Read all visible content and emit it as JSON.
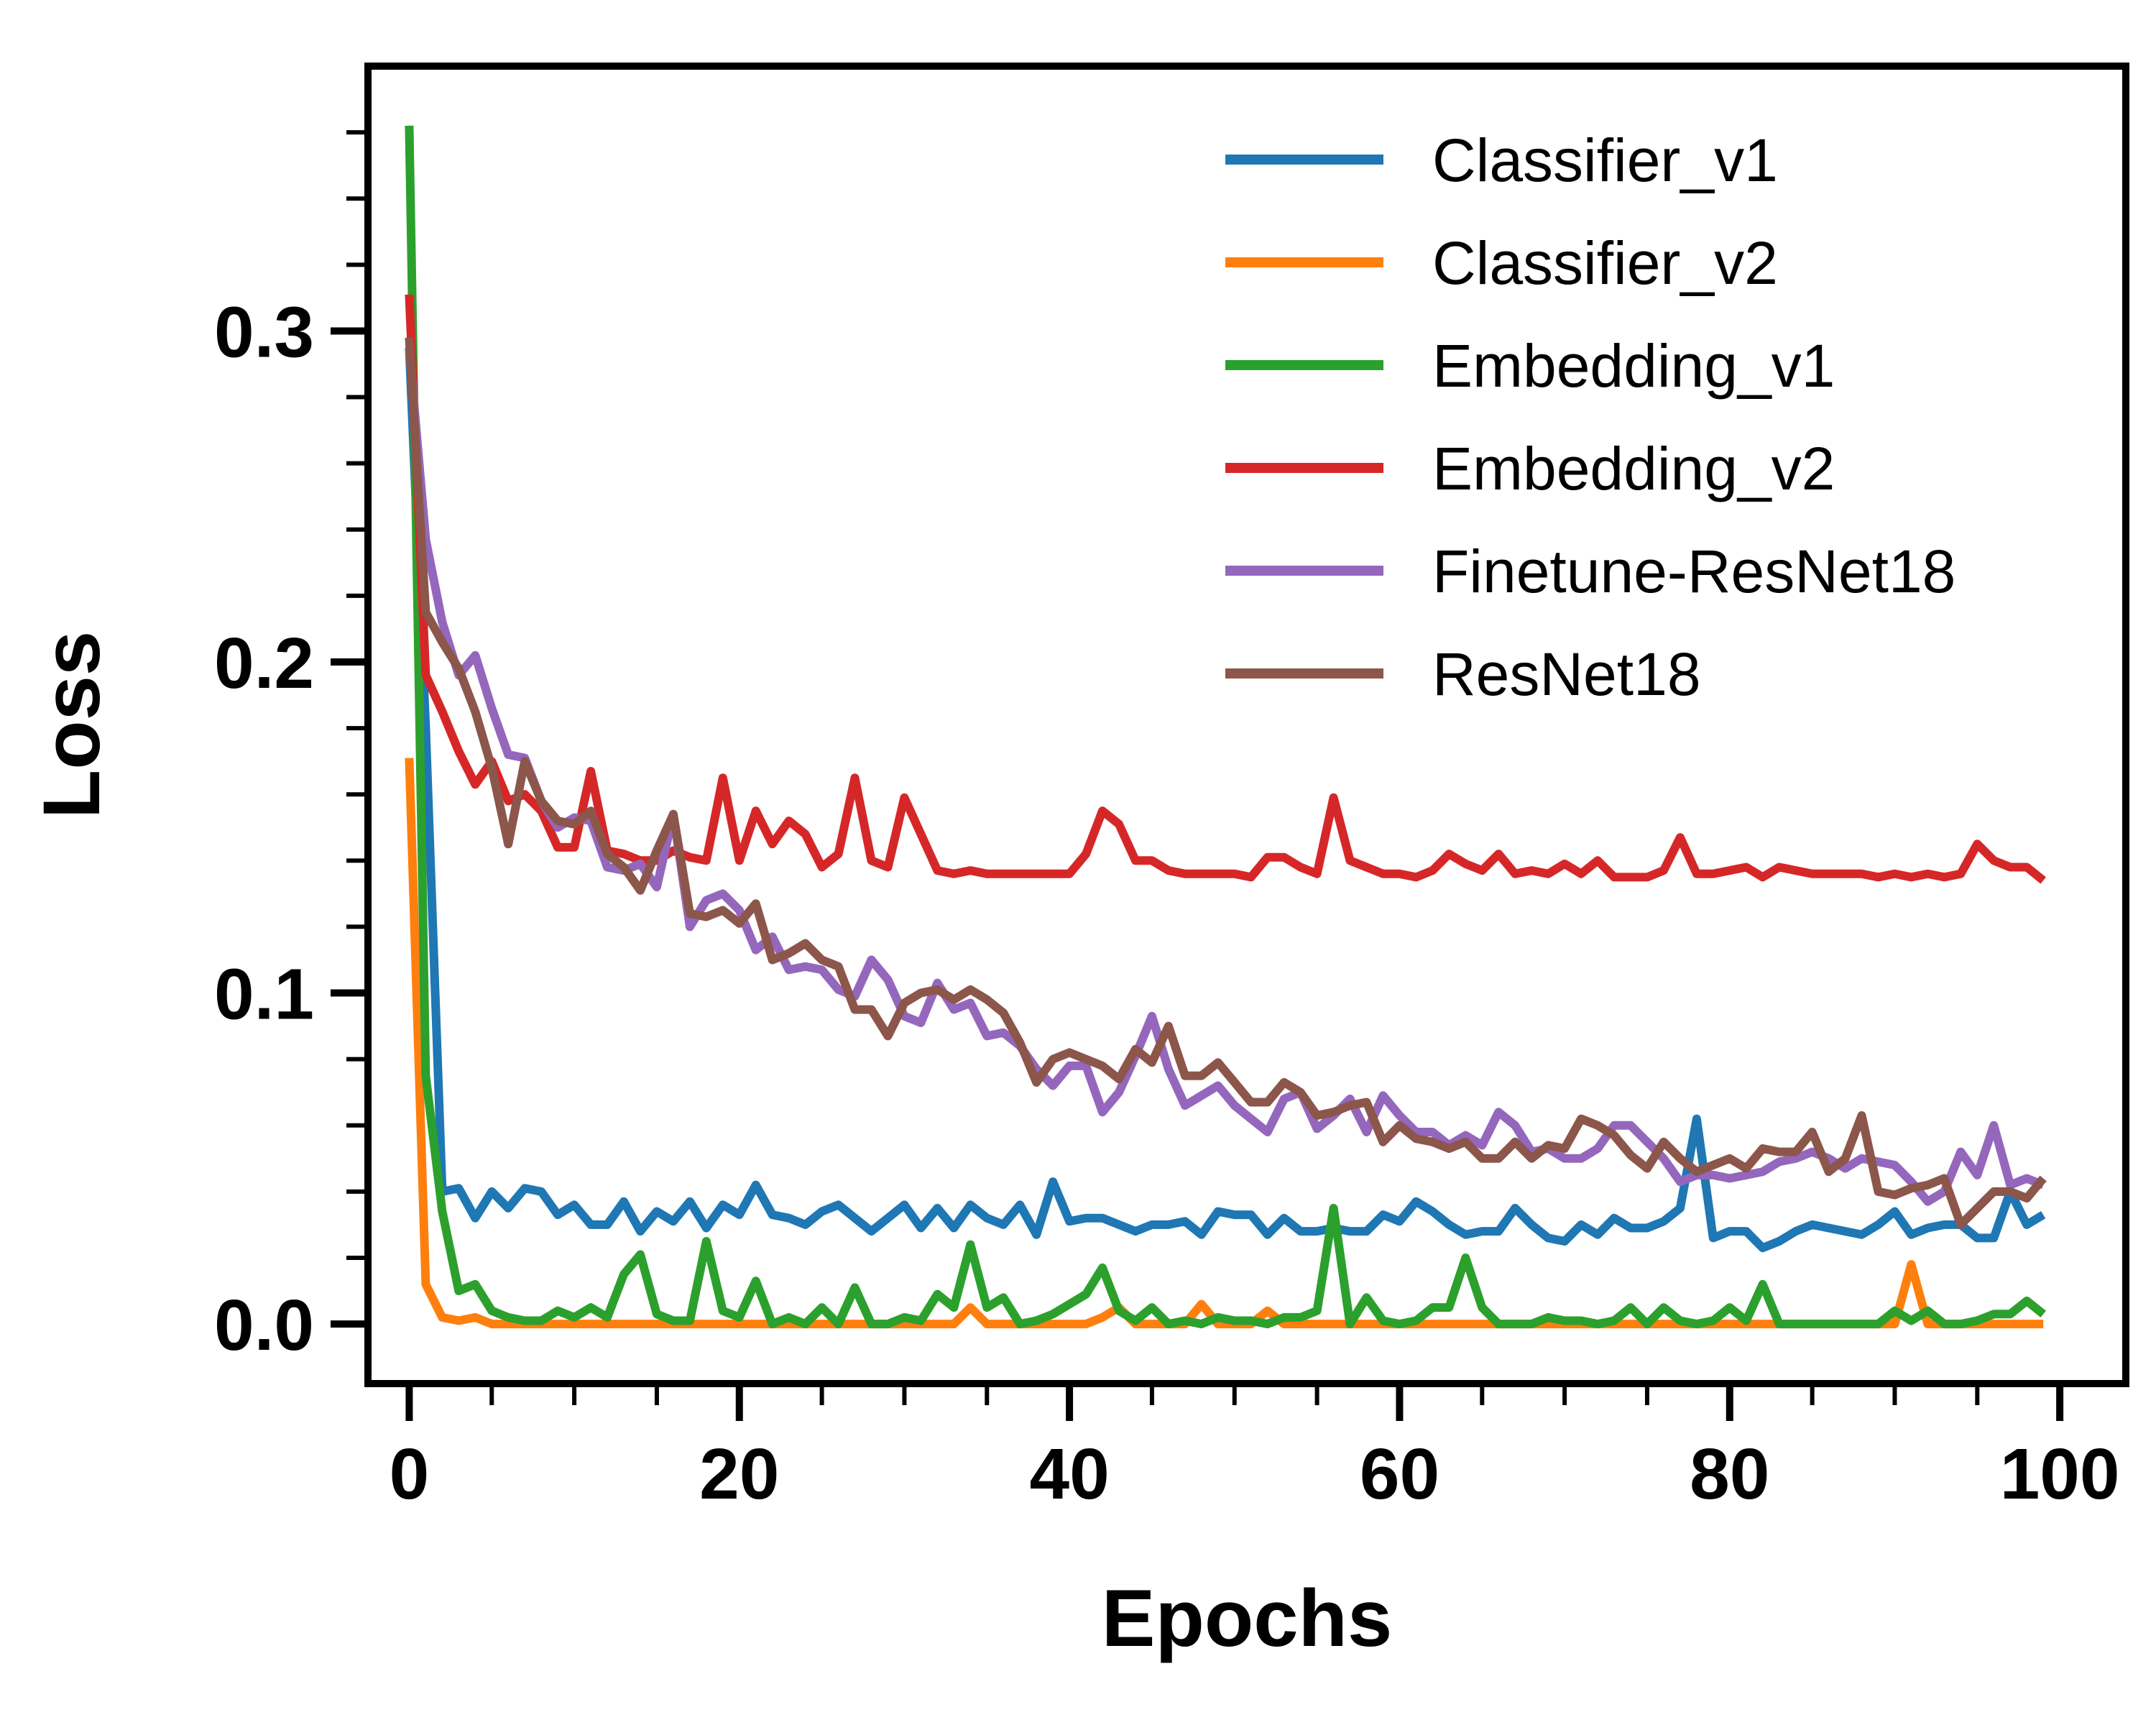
{
  "chart_data": {
    "type": "line",
    "xlabel": "Epochs",
    "ylabel": "Loss",
    "xlim": [
      -2.5,
      104
    ],
    "ylim": [
      -0.018,
      0.38
    ],
    "x_ticks": [
      0,
      20,
      40,
      60,
      80,
      100
    ],
    "x_tick_labels": [
      "0",
      "20",
      "40",
      "60",
      "80",
      "100"
    ],
    "y_ticks": [
      0.0,
      0.1,
      0.2,
      0.3
    ],
    "y_tick_labels": [
      "0.0",
      "0.1",
      "0.2",
      "0.3"
    ],
    "grid": false,
    "legend_position": "upper-right",
    "x": [
      0,
      1,
      2,
      3,
      4,
      5,
      6,
      7,
      8,
      9,
      10,
      11,
      12,
      13,
      14,
      15,
      16,
      17,
      18,
      19,
      20,
      21,
      22,
      23,
      24,
      25,
      26,
      27,
      28,
      29,
      30,
      31,
      32,
      33,
      34,
      35,
      36,
      37,
      38,
      39,
      40,
      41,
      42,
      43,
      44,
      45,
      46,
      47,
      48,
      49,
      50,
      51,
      52,
      53,
      54,
      55,
      56,
      57,
      58,
      59,
      60,
      61,
      62,
      63,
      64,
      65,
      66,
      67,
      68,
      69,
      70,
      71,
      72,
      73,
      74,
      75,
      76,
      77,
      78,
      79,
      80,
      81,
      82,
      83,
      84,
      85,
      86,
      87,
      88,
      89,
      90,
      91,
      92,
      93,
      94,
      95,
      96,
      97,
      98,
      99
    ],
    "series": [
      {
        "name": "Classifier_v1",
        "color": "#1f77b4",
        "values": [
          0.295,
          0.18,
          0.04,
          0.041,
          0.032,
          0.04,
          0.035,
          0.041,
          0.04,
          0.033,
          0.036,
          0.03,
          0.03,
          0.037,
          0.028,
          0.034,
          0.031,
          0.037,
          0.029,
          0.036,
          0.033,
          0.042,
          0.033,
          0.032,
          0.03,
          0.034,
          0.036,
          0.032,
          0.028,
          0.032,
          0.036,
          0.029,
          0.035,
          0.029,
          0.036,
          0.032,
          0.03,
          0.036,
          0.027,
          0.043,
          0.031,
          0.032,
          0.032,
          0.03,
          0.028,
          0.03,
          0.03,
          0.031,
          0.027,
          0.034,
          0.033,
          0.033,
          0.027,
          0.032,
          0.028,
          0.028,
          0.029,
          0.028,
          0.028,
          0.033,
          0.031,
          0.037,
          0.034,
          0.03,
          0.027,
          0.028,
          0.028,
          0.035,
          0.03,
          0.026,
          0.025,
          0.03,
          0.027,
          0.032,
          0.029,
          0.029,
          0.031,
          0.035,
          0.062,
          0.026,
          0.028,
          0.028,
          0.023,
          0.025,
          0.028,
          0.03,
          0.029,
          0.028,
          0.027,
          0.03,
          0.034,
          0.027,
          0.029,
          0.03,
          0.03,
          0.026,
          0.026,
          0.04,
          0.03,
          0.033
        ]
      },
      {
        "name": "Classifier_v2",
        "color": "#ff7f0e",
        "values": [
          0.171,
          0.012,
          0.002,
          0.001,
          0.002,
          0.0,
          0.0,
          0.0,
          0.0,
          0.0,
          0.0,
          0.0,
          0.0,
          0.0,
          0.0,
          0.0,
          0.0,
          0.0,
          0.0,
          0.0,
          0.0,
          0.0,
          0.0,
          0.0,
          0.0,
          0.0,
          0.0,
          0.0,
          0.0,
          0.0,
          0.0,
          0.0,
          0.0,
          0.0,
          0.005,
          0.0,
          0.0,
          0.0,
          0.0,
          0.0,
          0.0,
          0.0,
          0.002,
          0.005,
          0.0,
          0.0,
          0.0,
          0.0,
          0.006,
          0.0,
          0.0,
          0.0,
          0.004,
          0.0,
          0.0,
          0.0,
          0.0,
          0.0,
          0.0,
          0.0,
          0.0,
          0.0,
          0.0,
          0.0,
          0.0,
          0.0,
          0.0,
          0.0,
          0.0,
          0.0,
          0.0,
          0.0,
          0.0,
          0.0,
          0.0,
          0.0,
          0.0,
          0.0,
          0.0,
          0.0,
          0.0,
          0.0,
          0.0,
          0.0,
          0.0,
          0.0,
          0.0,
          0.0,
          0.0,
          0.0,
          0.0,
          0.018,
          0.0,
          0.0,
          0.0,
          0.0,
          0.0,
          0.0,
          0.0,
          0.0
        ]
      },
      {
        "name": "Embedding_v1",
        "color": "#2ca02c",
        "values": [
          0.362,
          0.075,
          0.034,
          0.01,
          0.012,
          0.004,
          0.002,
          0.001,
          0.001,
          0.004,
          0.002,
          0.005,
          0.002,
          0.015,
          0.021,
          0.003,
          0.001,
          0.001,
          0.025,
          0.004,
          0.002,
          0.013,
          0.0,
          0.002,
          0.0,
          0.005,
          0.0,
          0.011,
          0.0,
          0.0,
          0.002,
          0.001,
          0.009,
          0.005,
          0.024,
          0.005,
          0.008,
          0.0,
          0.001,
          0.003,
          0.006,
          0.009,
          0.017,
          0.004,
          0.001,
          0.005,
          0.0,
          0.001,
          0.0,
          0.002,
          0.001,
          0.001,
          0.0,
          0.002,
          0.002,
          0.004,
          0.035,
          0.0,
          0.008,
          0.001,
          0.0,
          0.001,
          0.005,
          0.005,
          0.02,
          0.005,
          0.0,
          0.0,
          0.0,
          0.002,
          0.001,
          0.001,
          0.0,
          0.001,
          0.005,
          0.0,
          0.005,
          0.001,
          0.0,
          0.001,
          0.005,
          0.001,
          0.012,
          0.0,
          0.0,
          0.0,
          0.0,
          0.0,
          0.0,
          0.0,
          0.004,
          0.001,
          0.004,
          0.0,
          0.0,
          0.001,
          0.003,
          0.003,
          0.007,
          0.003
        ]
      },
      {
        "name": "Embedding_v2",
        "color": "#d62728",
        "values": [
          0.311,
          0.196,
          0.185,
          0.173,
          0.163,
          0.17,
          0.158,
          0.16,
          0.155,
          0.144,
          0.144,
          0.167,
          0.143,
          0.142,
          0.14,
          0.14,
          0.143,
          0.141,
          0.14,
          0.165,
          0.14,
          0.155,
          0.145,
          0.152,
          0.148,
          0.138,
          0.142,
          0.165,
          0.14,
          0.138,
          0.159,
          0.148,
          0.137,
          0.136,
          0.137,
          0.136,
          0.136,
          0.136,
          0.136,
          0.136,
          0.136,
          0.142,
          0.155,
          0.151,
          0.14,
          0.14,
          0.137,
          0.136,
          0.136,
          0.136,
          0.136,
          0.135,
          0.141,
          0.141,
          0.138,
          0.136,
          0.159,
          0.14,
          0.138,
          0.136,
          0.136,
          0.135,
          0.137,
          0.142,
          0.139,
          0.137,
          0.142,
          0.136,
          0.137,
          0.136,
          0.139,
          0.136,
          0.14,
          0.135,
          0.135,
          0.135,
          0.137,
          0.147,
          0.136,
          0.136,
          0.137,
          0.138,
          0.135,
          0.138,
          0.137,
          0.136,
          0.136,
          0.136,
          0.136,
          0.135,
          0.136,
          0.135,
          0.136,
          0.135,
          0.136,
          0.145,
          0.14,
          0.138,
          0.138,
          0.134
        ]
      },
      {
        "name": "Finetune-ResNet18",
        "color": "#9467bd",
        "values": [
          0.295,
          0.237,
          0.212,
          0.196,
          0.202,
          0.186,
          0.172,
          0.171,
          0.158,
          0.15,
          0.153,
          0.152,
          0.138,
          0.137,
          0.139,
          0.132,
          0.154,
          0.12,
          0.128,
          0.13,
          0.125,
          0.113,
          0.117,
          0.107,
          0.108,
          0.107,
          0.101,
          0.099,
          0.11,
          0.104,
          0.093,
          0.091,
          0.103,
          0.095,
          0.097,
          0.087,
          0.088,
          0.084,
          0.077,
          0.072,
          0.078,
          0.078,
          0.064,
          0.07,
          0.081,
          0.093,
          0.077,
          0.066,
          0.069,
          0.072,
          0.066,
          0.062,
          0.058,
          0.068,
          0.07,
          0.059,
          0.063,
          0.068,
          0.058,
          0.069,
          0.063,
          0.058,
          0.058,
          0.054,
          0.057,
          0.054,
          0.064,
          0.06,
          0.052,
          0.053,
          0.05,
          0.05,
          0.053,
          0.06,
          0.06,
          0.055,
          0.05,
          0.043,
          0.045,
          0.045,
          0.044,
          0.045,
          0.046,
          0.049,
          0.05,
          0.052,
          0.05,
          0.047,
          0.05,
          0.049,
          0.048,
          0.043,
          0.037,
          0.04,
          0.052,
          0.045,
          0.06,
          0.042,
          0.044,
          0.042
        ]
      },
      {
        "name": "ResNet18",
        "color": "#8c564b",
        "values": [
          0.298,
          0.215,
          0.206,
          0.198,
          0.185,
          0.168,
          0.145,
          0.17,
          0.158,
          0.152,
          0.151,
          0.155,
          0.142,
          0.138,
          0.131,
          0.143,
          0.154,
          0.124,
          0.123,
          0.125,
          0.121,
          0.127,
          0.11,
          0.112,
          0.115,
          0.11,
          0.108,
          0.095,
          0.095,
          0.087,
          0.097,
          0.1,
          0.101,
          0.098,
          0.101,
          0.098,
          0.094,
          0.085,
          0.073,
          0.08,
          0.082,
          0.08,
          0.078,
          0.074,
          0.083,
          0.079,
          0.09,
          0.075,
          0.075,
          0.079,
          0.073,
          0.067,
          0.067,
          0.073,
          0.07,
          0.063,
          0.064,
          0.066,
          0.067,
          0.055,
          0.06,
          0.056,
          0.055,
          0.053,
          0.055,
          0.05,
          0.05,
          0.055,
          0.05,
          0.054,
          0.053,
          0.062,
          0.06,
          0.057,
          0.051,
          0.047,
          0.055,
          0.05,
          0.046,
          0.048,
          0.05,
          0.047,
          0.053,
          0.052,
          0.052,
          0.058,
          0.046,
          0.05,
          0.063,
          0.04,
          0.039,
          0.041,
          0.042,
          0.044,
          0.03,
          0.035,
          0.04,
          0.04,
          0.038,
          0.044
        ]
      }
    ]
  }
}
